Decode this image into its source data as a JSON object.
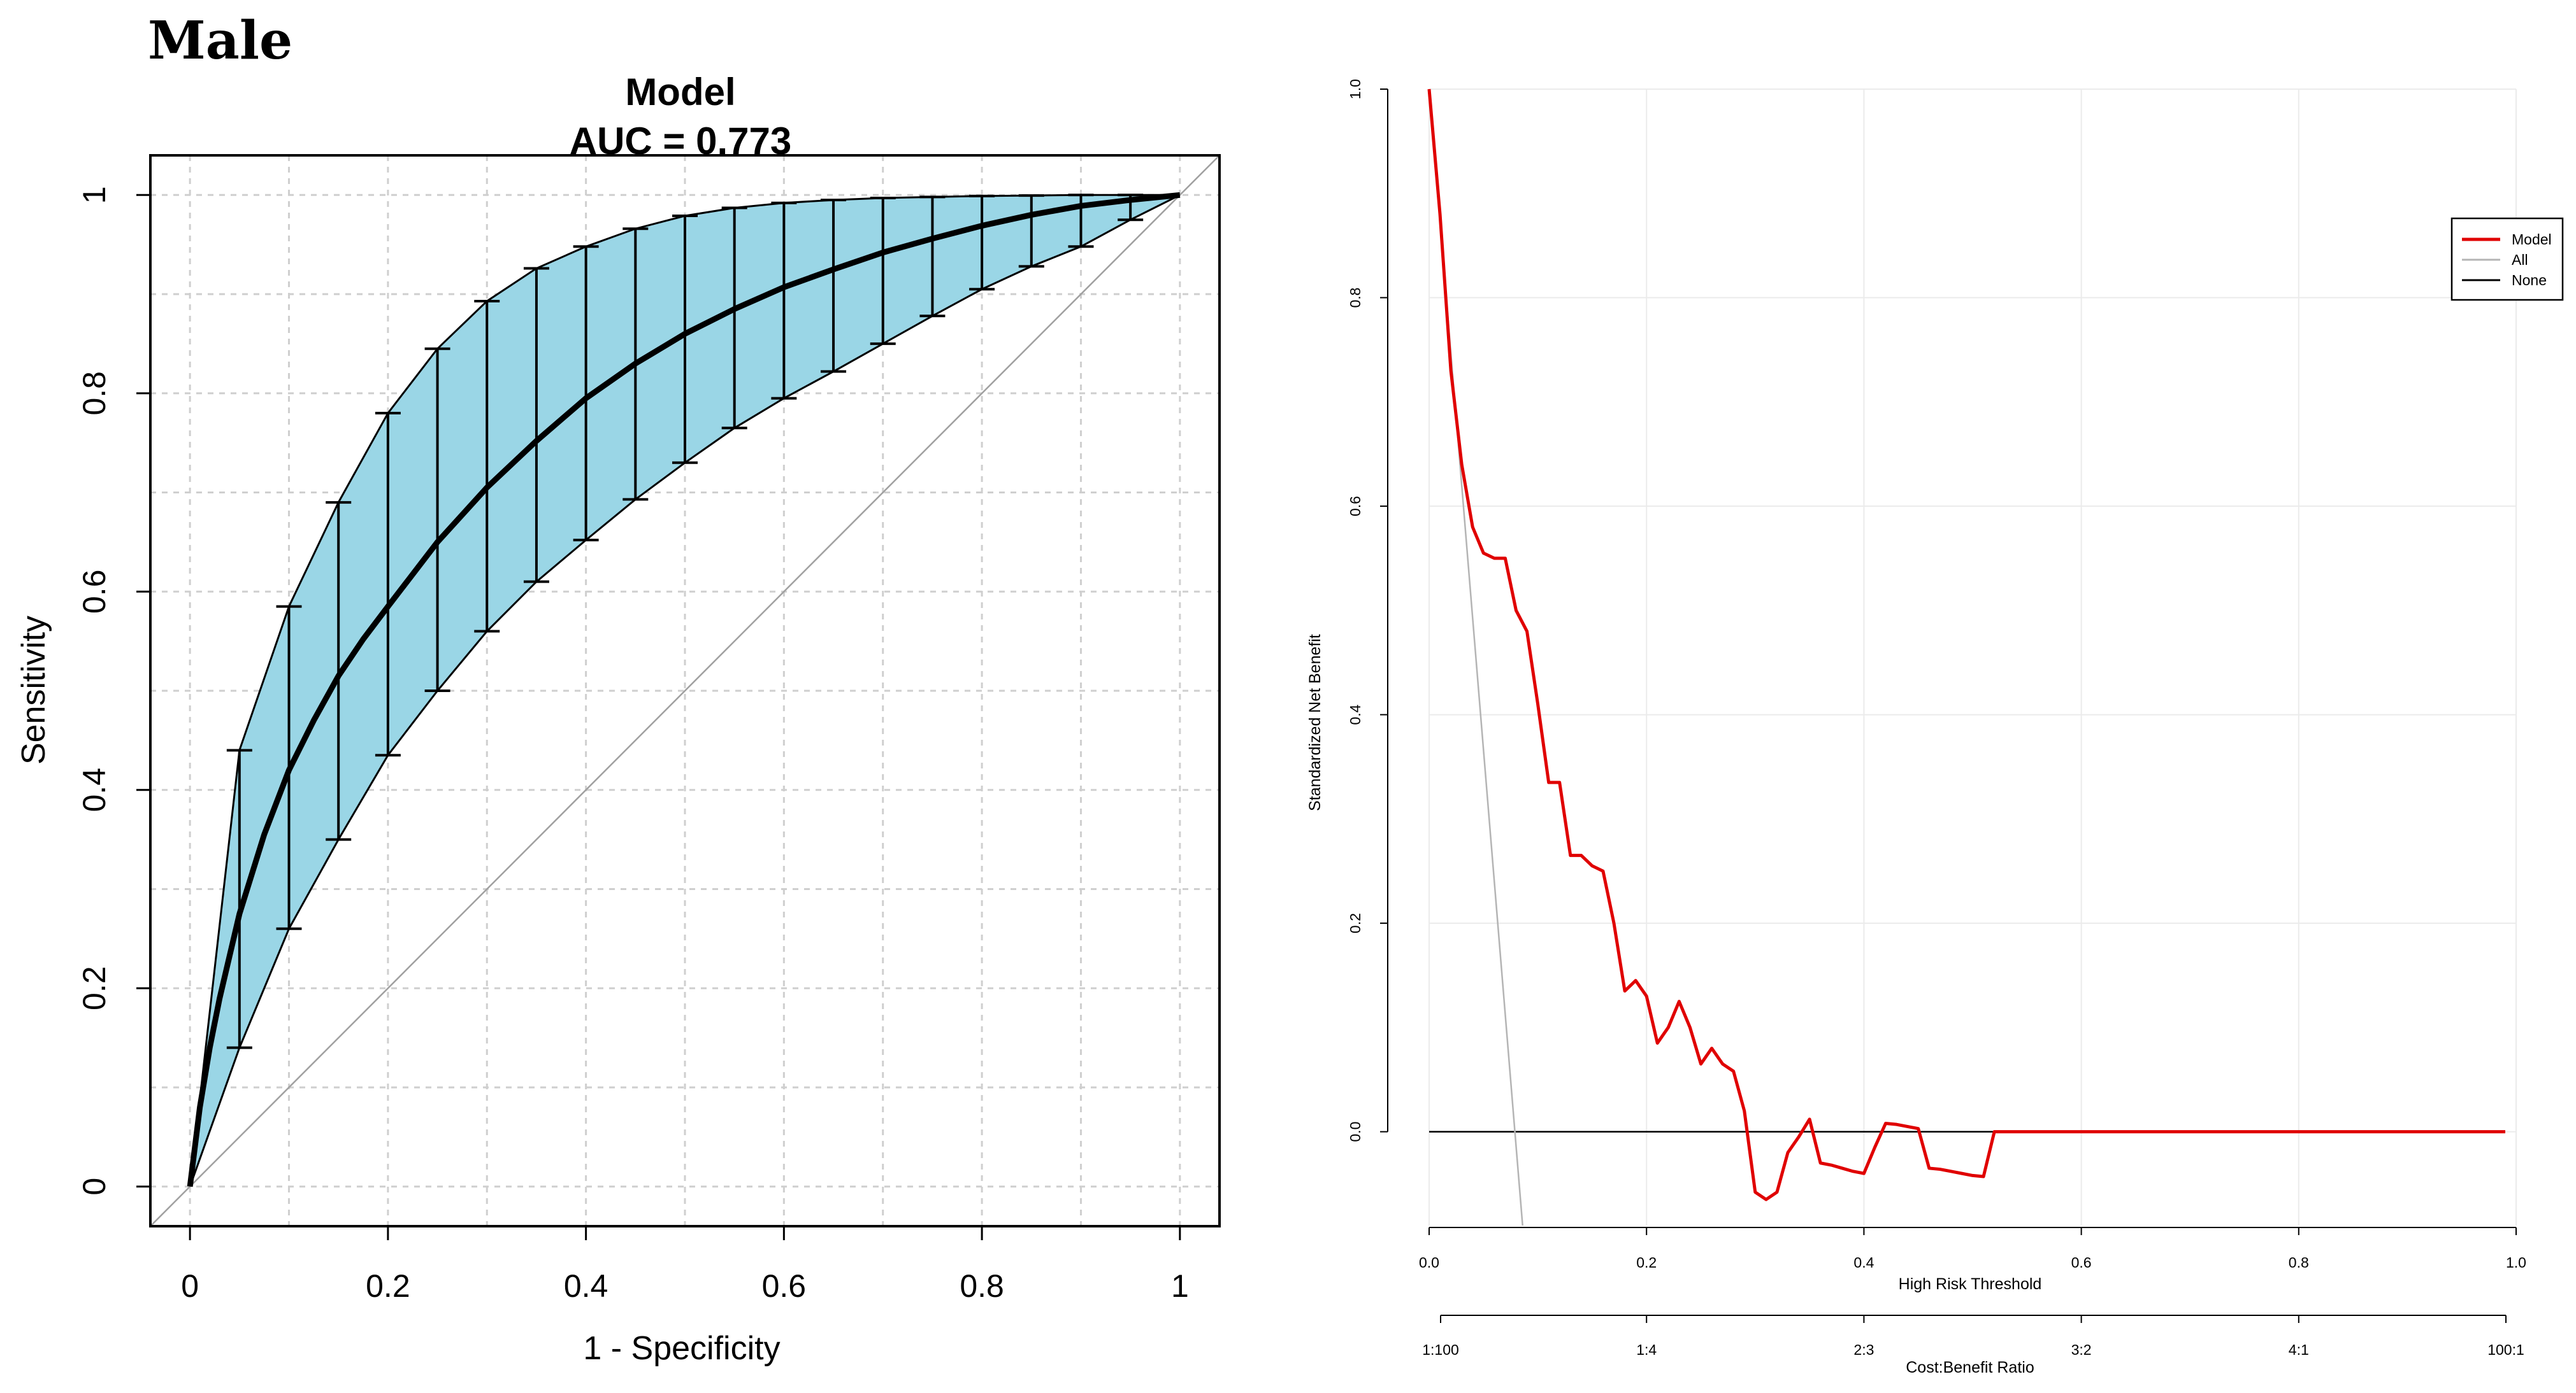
{
  "panel_label": "Male",
  "colors": {
    "ci_fill": "#9ad6e6",
    "grid_dotted": "#cfcfcf",
    "grid_light": "#ebebeb",
    "model_line": "#e00000",
    "all_line": "#b4b4b4",
    "none_line": "#000000"
  },
  "chart_data": [
    {
      "type": "line",
      "kind": "roc",
      "title": "Model",
      "subtitle": "AUC =  0.773",
      "xlabel": "1 - Specificity",
      "ylabel": "Sensitivity",
      "xlim": [
        -0.04,
        1.04
      ],
      "ylim": [
        -0.04,
        1.04
      ],
      "xticks": [
        0,
        0.2,
        0.4,
        0.6,
        0.8,
        1
      ],
      "xtick_labels": [
        "0",
        "0.2",
        "0.4",
        "0.6",
        "0.8",
        "1"
      ],
      "yticks": [
        0,
        0.2,
        0.4,
        0.6,
        0.8,
        1
      ],
      "ytick_labels": [
        "0",
        "0.2",
        "0.4",
        "0.6",
        "0.8",
        "1"
      ],
      "grid": true,
      "ci_x": [
        0,
        0.05,
        0.1,
        0.15,
        0.2,
        0.25,
        0.3,
        0.35,
        0.4,
        0.45,
        0.5,
        0.55,
        0.6,
        0.65,
        0.7,
        0.75,
        0.8,
        0.85,
        0.9,
        0.95,
        1
      ],
      "ci_upper": [
        0,
        0.44,
        0.585,
        0.69,
        0.78,
        0.845,
        0.893,
        0.926,
        0.948,
        0.966,
        0.979,
        0.987,
        0.992,
        0.995,
        0.997,
        0.998,
        0.999,
        0.9995,
        1,
        1,
        1
      ],
      "ci_lower": [
        0,
        0.14,
        0.26,
        0.35,
        0.435,
        0.5,
        0.56,
        0.61,
        0.652,
        0.693,
        0.73,
        0.765,
        0.795,
        0.822,
        0.85,
        0.878,
        0.905,
        0.928,
        0.948,
        0.975,
        1
      ],
      "series": [
        {
          "name": "ROC",
          "x": [
            0,
            0.01,
            0.02,
            0.03,
            0.05,
            0.075,
            0.1,
            0.125,
            0.15,
            0.175,
            0.2,
            0.25,
            0.3,
            0.35,
            0.4,
            0.45,
            0.5,
            0.55,
            0.6,
            0.65,
            0.7,
            0.75,
            0.8,
            0.85,
            0.9,
            0.95,
            1
          ],
          "y": [
            0,
            0.08,
            0.14,
            0.19,
            0.275,
            0.355,
            0.42,
            0.47,
            0.515,
            0.552,
            0.585,
            0.65,
            0.705,
            0.752,
            0.795,
            0.83,
            0.86,
            0.885,
            0.907,
            0.925,
            0.942,
            0.956,
            0.969,
            0.98,
            0.989,
            0.995,
            1
          ]
        },
        {
          "name": "reference",
          "x": [
            -0.04,
            1.04
          ],
          "y": [
            -0.04,
            1.04
          ]
        }
      ]
    },
    {
      "type": "line",
      "kind": "decision_curve",
      "xlabel": "High Risk Threshold",
      "ylabel": "Standardized Net Benefit",
      "xlabel2": "Cost:Benefit Ratio",
      "xlim": [
        0,
        1
      ],
      "ylim": [
        -0.09,
        1.0
      ],
      "xticks": [
        0,
        0.2,
        0.4,
        0.6,
        0.8,
        1.0
      ],
      "xtick_labels": [
        "0.0",
        "0.2",
        "0.4",
        "0.6",
        "0.8",
        "1.0"
      ],
      "x2tick_labels": [
        "1:100",
        "1:4",
        "2:3",
        "3:2",
        "4:1",
        "100:1"
      ],
      "yticks": [
        0,
        0.2,
        0.4,
        0.6,
        0.8,
        1.0
      ],
      "ytick_labels": [
        "0.0",
        "0.2",
        "0.4",
        "0.6",
        "0.8",
        "1.0"
      ],
      "grid": true,
      "legend_position": "top-right",
      "series": [
        {
          "name": "Model",
          "x": [
            0,
            0.01,
            0.02,
            0.03,
            0.04,
            0.05,
            0.06,
            0.07,
            0.08,
            0.09,
            0.1,
            0.11,
            0.12,
            0.13,
            0.14,
            0.15,
            0.16,
            0.17,
            0.18,
            0.19,
            0.2,
            0.21,
            0.22,
            0.23,
            0.24,
            0.25,
            0.26,
            0.27,
            0.28,
            0.29,
            0.3,
            0.31,
            0.32,
            0.33,
            0.34,
            0.35,
            0.36,
            0.37,
            0.38,
            0.39,
            0.4,
            0.41,
            0.42,
            0.43,
            0.44,
            0.45,
            0.46,
            0.47,
            0.48,
            0.49,
            0.5,
            0.51,
            0.52,
            0.6,
            0.7,
            0.8,
            0.9,
            0.99
          ],
          "y": [
            1.0,
            0.88,
            0.73,
            0.64,
            0.58,
            0.555,
            0.55,
            0.55,
            0.5,
            0.48,
            0.41,
            0.335,
            0.335,
            0.265,
            0.265,
            0.255,
            0.25,
            0.2,
            0.135,
            0.145,
            0.13,
            0.085,
            0.1,
            0.125,
            0.1,
            0.065,
            0.08,
            0.065,
            0.058,
            0.02,
            -0.058,
            -0.065,
            -0.058,
            -0.02,
            -0.005,
            0.012,
            -0.03,
            -0.032,
            -0.035,
            -0.038,
            -0.04,
            -0.015,
            0.008,
            0.007,
            0.005,
            0.003,
            -0.035,
            -0.036,
            -0.038,
            -0.04,
            -0.042,
            -0.043,
            0.0,
            0.0,
            0.0,
            0.0,
            0.0,
            0.0
          ]
        },
        {
          "name": "All",
          "x": [
            0,
            0.086
          ],
          "y": [
            1.0,
            -0.09
          ]
        },
        {
          "name": "None",
          "x": [
            0,
            0.99
          ],
          "y": [
            0,
            0
          ]
        }
      ]
    }
  ]
}
